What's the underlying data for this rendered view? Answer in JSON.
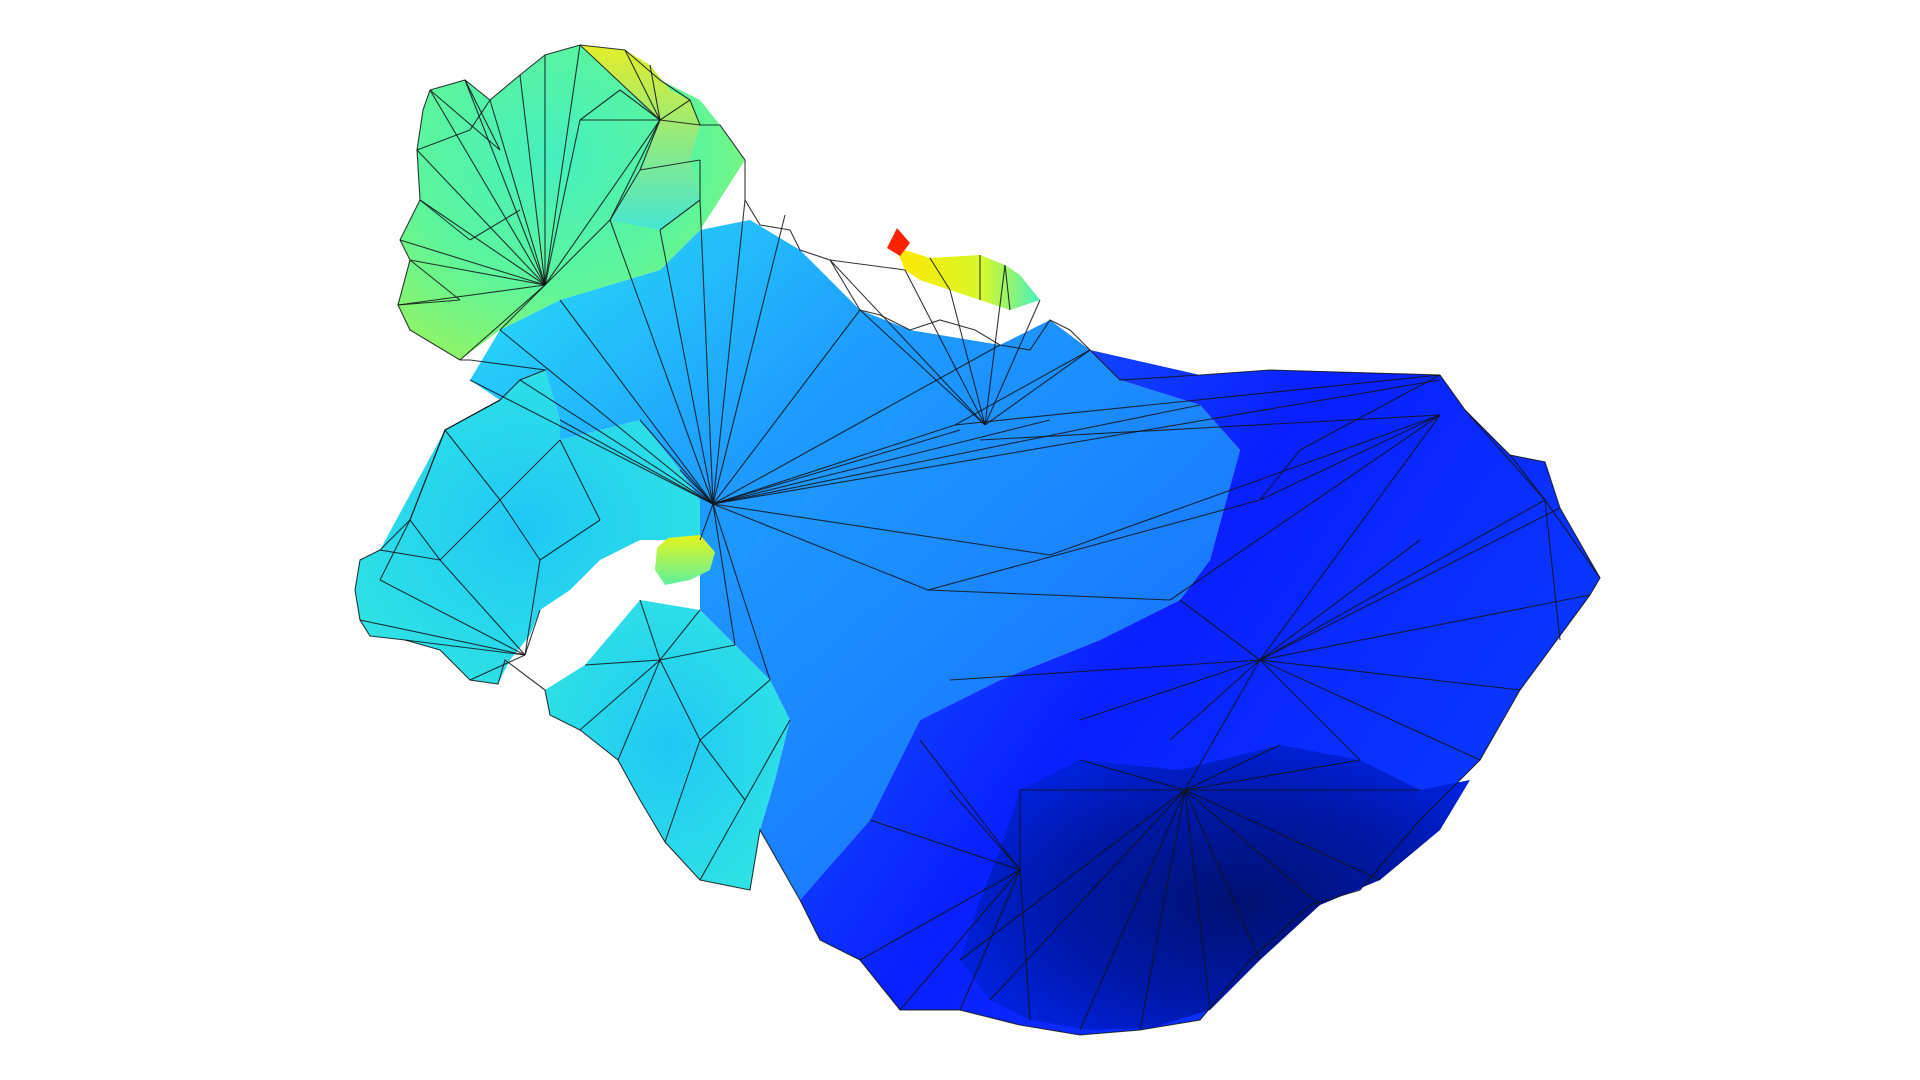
{
  "scene": {
    "background_color": "#ffffff",
    "edge_color": "#101418",
    "colormap": "jet",
    "colormap_stops": [
      "#00007f",
      "#0000ff",
      "#007fff",
      "#00ffff",
      "#7fff7f",
      "#ffff00",
      "#ff7f00",
      "#ff0000",
      "#7f0000"
    ]
  },
  "regions": {
    "upper_left_lobe": {
      "color": "#4ff5b2"
    },
    "lower_left_lobe": {
      "color": "#22d2ee"
    },
    "center_band": {
      "color": "#1f90ff"
    },
    "east_body": {
      "color": "#0a2aff"
    },
    "south_core": {
      "color": "#001a8c"
    },
    "ridge_hotspot": {
      "color": "#f4f400"
    },
    "peak_spike": {
      "color": "#ff1a00"
    },
    "notch_hotspot": {
      "color": "#d8f51e"
    }
  }
}
